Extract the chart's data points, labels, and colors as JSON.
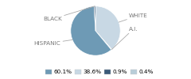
{
  "labels": [
    "WHITE",
    "A.I.",
    "HISPANIC",
    "BLACK"
  ],
  "values": [
    38.6,
    0.4,
    60.1,
    0.9
  ],
  "colors": [
    "#c8d8e4",
    "#b8cdd8",
    "#6e9ab5",
    "#3a5a78"
  ],
  "legend_colors": [
    "#6e9ab5",
    "#c8d8e4",
    "#3a5a78",
    "#b8cdd8"
  ],
  "legend_labels": [
    "60.1%",
    "38.6%",
    "0.9%",
    "0.4%"
  ],
  "startangle": 90,
  "label_text_color": "#777777",
  "line_color": "#aaaaaa",
  "font_size": 5.2,
  "label_coords": {
    "WHITE": [
      1.35,
      0.62
    ],
    "A.I.": [
      1.35,
      0.08
    ],
    "HISPANIC": [
      -1.4,
      -0.52
    ],
    "BLACK": [
      -1.35,
      0.48
    ]
  }
}
